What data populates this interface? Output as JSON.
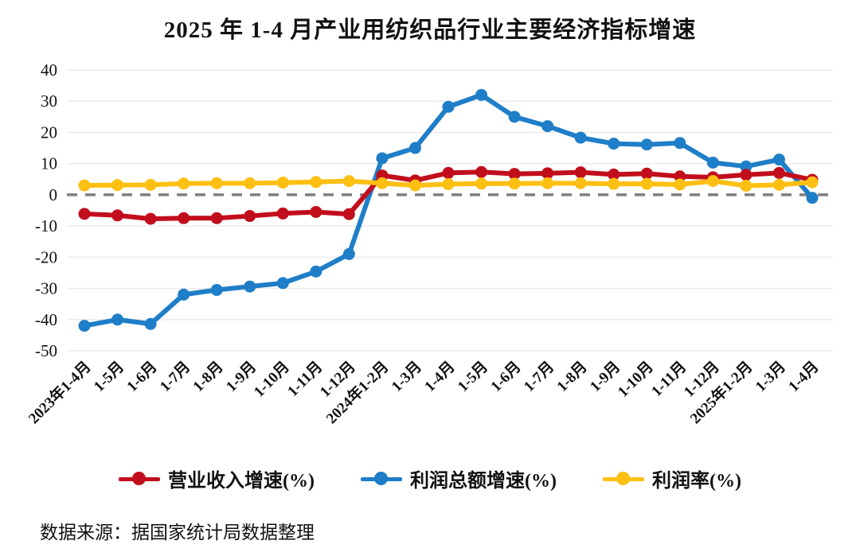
{
  "title": "2025 年 1-4 月产业用纺织品行业主要经济指标增速",
  "source_note": "数据来源：据国家统计局数据整理",
  "colors": {
    "revenue_line": "#c20e1c",
    "profit_line": "#1f7ec8",
    "margin_line": "#fdbf11",
    "zero_line": "#7f7f7f",
    "gridline": "#eaeaea",
    "text": "#111111"
  },
  "chart_data": {
    "type": "line",
    "title": "2025 年 1-4 月产业用纺织品行业主要经济指标增速",
    "categories": [
      "2023年1-4月",
      "1-5月",
      "1-6月",
      "1-7月",
      "1-8月",
      "1-9月",
      "1-10月",
      "1-11月",
      "1-12月",
      "2024年1-2月",
      "1-3月",
      "1-4月",
      "1-5月",
      "1-6月",
      "1-7月",
      "1-8月",
      "1-9月",
      "1-10月",
      "1-11月",
      "1-12月",
      "2025年1-2月",
      "1-3月",
      "1-4月"
    ],
    "series": [
      {
        "name": "营业收入增速(%)",
        "color": "#c20e1c",
        "values": [
          -6.1,
          -6.6,
          -7.7,
          -7.5,
          -7.5,
          -6.8,
          -6.0,
          -5.5,
          -6.2,
          6.2,
          4.6,
          7.0,
          7.3,
          6.7,
          6.9,
          7.2,
          6.5,
          6.8,
          5.9,
          5.6,
          6.4,
          7.0,
          4.8
        ]
      },
      {
        "name": "利润总额增速(%)",
        "color": "#1f7ec8",
        "values": [
          -42.0,
          -40.0,
          -41.4,
          -32.0,
          -30.5,
          -29.4,
          -28.3,
          -24.6,
          -19.0,
          11.7,
          15.0,
          28.2,
          32.0,
          25.0,
          22.0,
          18.3,
          16.4,
          16.1,
          16.6,
          10.3,
          9.1,
          11.3,
          -1.0
        ]
      },
      {
        "name": "利润率(%)",
        "color": "#fdbf11",
        "values": [
          3.0,
          3.1,
          3.2,
          3.6,
          3.7,
          3.7,
          3.9,
          4.1,
          4.4,
          3.7,
          3.0,
          3.4,
          3.6,
          3.6,
          3.7,
          3.7,
          3.5,
          3.5,
          3.3,
          4.4,
          2.9,
          3.2,
          4.0
        ]
      }
    ],
    "xlabel": "",
    "ylabel": "",
    "ylim": [
      -50,
      40
    ],
    "ytick_step": 10,
    "yticks": [
      40,
      30,
      20,
      10,
      0,
      -10,
      -20,
      -30,
      -40,
      -50
    ],
    "grid": true,
    "zero_line_style": "dashed-gray",
    "x_label_rotation": -45,
    "legend_position": "bottom"
  }
}
